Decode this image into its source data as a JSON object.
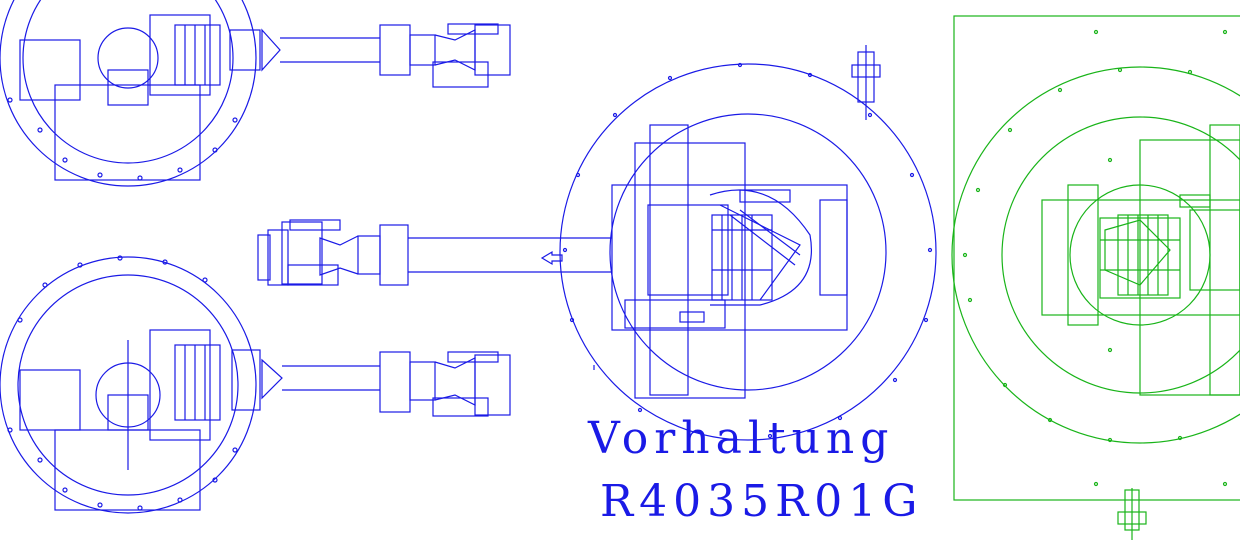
{
  "colors": {
    "robot_blue": "#1a1ae6",
    "robot_green": "#19b419",
    "background": "#ffffff"
  },
  "labels": {
    "line1": "Vorhaltung",
    "line2": "R4035R01G"
  }
}
